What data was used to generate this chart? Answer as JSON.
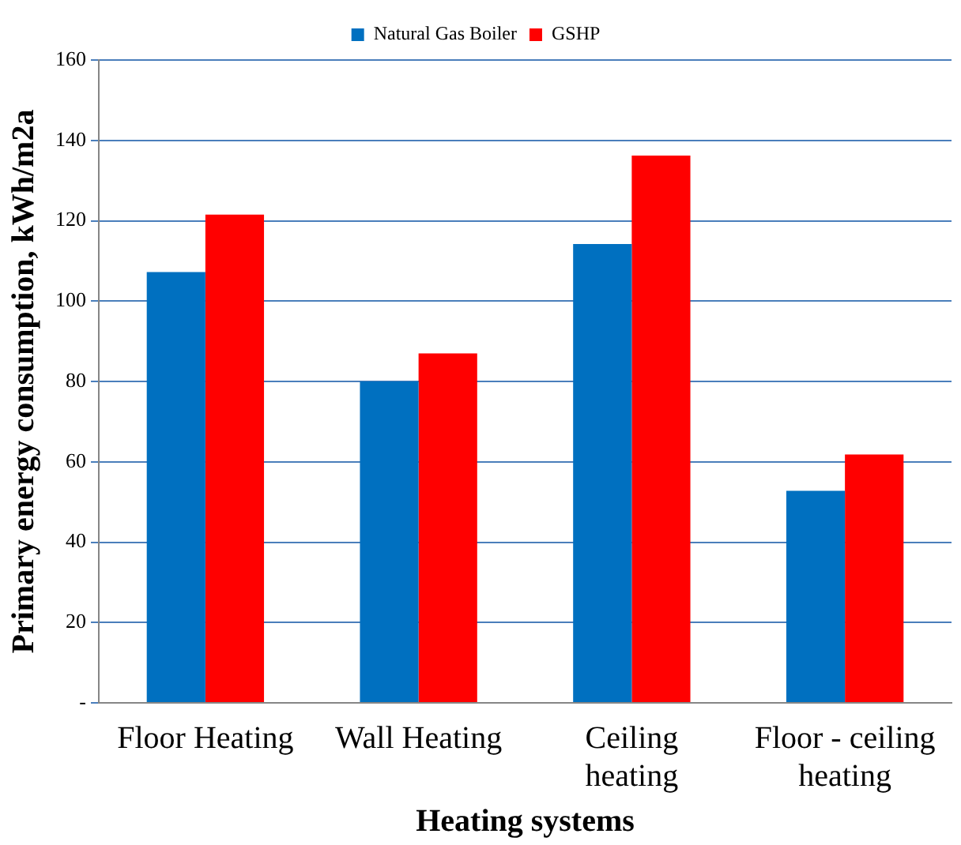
{
  "chart_data": {
    "type": "bar",
    "xlabel": "Heating systems",
    "ylabel": "Primary energy consumption, kWh/m2a",
    "categories": [
      "Floor Heating",
      "Wall Heating",
      "Ceiling heating",
      "Floor - ceiling heating"
    ],
    "series": [
      {
        "name": "Natural Gas Boiler",
        "color": "#0070c0",
        "values": [
          107.2,
          80,
          114.2,
          52.8
        ]
      },
      {
        "name": "GSHP",
        "color": "#ff0000",
        "values": [
          121.5,
          87,
          136.2,
          61.8
        ]
      }
    ],
    "ylim": [
      0,
      160
    ],
    "yticks": [
      {
        "value": 0,
        "label": "-"
      },
      20,
      40,
      60,
      80,
      100,
      120,
      140,
      160
    ],
    "grid": "y",
    "legend": "top"
  }
}
